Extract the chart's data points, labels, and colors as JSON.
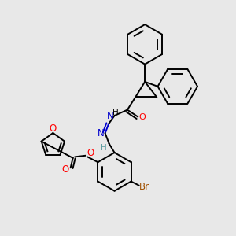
{
  "background_color": "#e8e8e8",
  "line_color": "#000000",
  "bond_width": 1.4,
  "figsize": [
    3.0,
    3.0
  ],
  "dpi": 100,
  "heteroatom_colors": {
    "O": "#ff0000",
    "N": "#0000cd",
    "Br": "#a05000",
    "H_imine": "#5f9ea0"
  }
}
